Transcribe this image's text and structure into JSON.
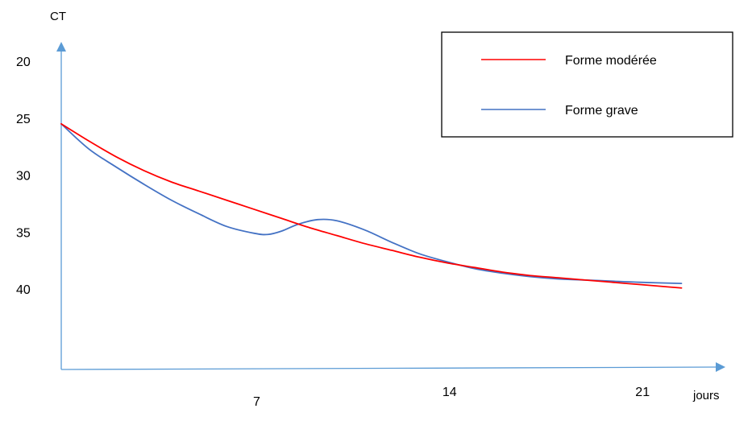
{
  "chart_data": {
    "type": "line",
    "ylabel": "CT",
    "xlabel": "jours",
    "y_inverted": true,
    "y_ticks": [
      "20",
      "25",
      "30",
      "35",
      "40"
    ],
    "x_ticks": [
      "7",
      "14",
      "21"
    ],
    "legend_position": "top-right",
    "series": [
      {
        "name": "Forme modérée",
        "color": "#ff0000",
        "points": [
          [
            0,
            25.5
          ],
          [
            1,
            27.0
          ],
          [
            2,
            28.4
          ],
          [
            3,
            29.6
          ],
          [
            4,
            30.6
          ],
          [
            5,
            31.4
          ],
          [
            6,
            32.2
          ],
          [
            7,
            33.0
          ],
          [
            8,
            33.8
          ],
          [
            9,
            34.6
          ],
          [
            10,
            35.3
          ],
          [
            11,
            36.0
          ],
          [
            12,
            36.6
          ],
          [
            13,
            37.2
          ],
          [
            14,
            37.7
          ],
          [
            15,
            38.1
          ],
          [
            16,
            38.5
          ],
          [
            17,
            38.8
          ],
          [
            18,
            39.0
          ],
          [
            19,
            39.2
          ],
          [
            20,
            39.4
          ],
          [
            21,
            39.6
          ],
          [
            22,
            39.8
          ],
          [
            22.5,
            39.9
          ]
        ]
      },
      {
        "name": "Forme grave",
        "color": "#4472c4",
        "points": [
          [
            0,
            25.5
          ],
          [
            1,
            27.7
          ],
          [
            2,
            29.3
          ],
          [
            3,
            30.8
          ],
          [
            4,
            32.2
          ],
          [
            5,
            33.4
          ],
          [
            6,
            34.5
          ],
          [
            7,
            35.1
          ],
          [
            7.5,
            35.2
          ],
          [
            8,
            34.9
          ],
          [
            8.6,
            34.3
          ],
          [
            9.3,
            33.9
          ],
          [
            10,
            34.0
          ],
          [
            11,
            34.8
          ],
          [
            12,
            35.9
          ],
          [
            13,
            36.9
          ],
          [
            14,
            37.6
          ],
          [
            15,
            38.2
          ],
          [
            16,
            38.6
          ],
          [
            17,
            38.9
          ],
          [
            18,
            39.1
          ],
          [
            19,
            39.2
          ],
          [
            20,
            39.3
          ],
          [
            21,
            39.4
          ],
          [
            22.5,
            39.5
          ]
        ]
      }
    ]
  }
}
